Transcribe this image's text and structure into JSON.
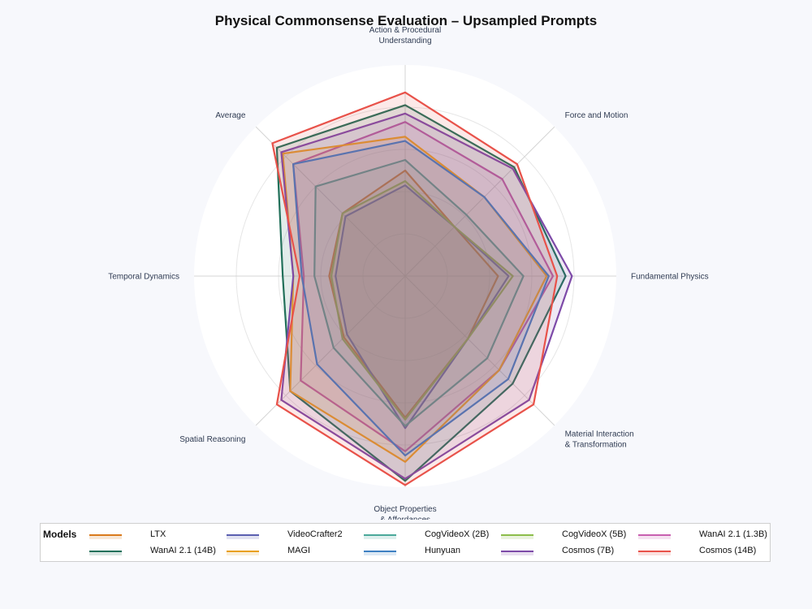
{
  "title": "Physical Commonsense Evaluation – Upsampled Prompts",
  "legend": {
    "title": "Models"
  },
  "chart_data": {
    "type": "radar",
    "title": "Physical Commonsense Evaluation – Upsampled Prompts",
    "axes": [
      [
        "Action & Procedural",
        "Understanding"
      ],
      [
        "Force and Motion"
      ],
      [
        "Fundamental Physics"
      ],
      [
        "Material Interaction",
        "& Transformation"
      ],
      [
        "Object Properties",
        "& Affordances"
      ],
      [
        "Spatial Reasoning"
      ],
      [
        "Temporal Dynamics"
      ],
      [
        "Average"
      ]
    ],
    "range": [
      0,
      1
    ],
    "grid": true,
    "legend_position": "bottom",
    "series": [
      {
        "name": "LTX",
        "color": "#d97a1c",
        "values": [
          0.5,
          0.33,
          0.44,
          0.42,
          0.67,
          0.41,
          0.36,
          0.42
        ]
      },
      {
        "name": "VideoCrafter2",
        "color": "#5a5fb0",
        "values": [
          0.43,
          0.33,
          0.49,
          0.42,
          0.72,
          0.39,
          0.33,
          0.4
        ]
      },
      {
        "name": "CogVideoX (2B)",
        "color": "#4aa89a",
        "values": [
          0.55,
          0.41,
          0.56,
          0.55,
          0.71,
          0.48,
          0.43,
          0.6
        ]
      },
      {
        "name": "CogVideoX (5B)",
        "color": "#8cbd4a",
        "values": [
          0.45,
          0.33,
          0.51,
          0.42,
          0.68,
          0.42,
          0.35,
          0.42
        ]
      },
      {
        "name": "WanAI 2.1 (1.3B)",
        "color": "#c860b0",
        "values": [
          0.73,
          0.65,
          0.7,
          0.63,
          0.83,
          0.7,
          0.48,
          0.75
        ]
      },
      {
        "name": "WanAI 2.1 (14B)",
        "color": "#22705a",
        "values": [
          0.81,
          0.73,
          0.76,
          0.72,
          0.97,
          0.77,
          0.58,
          0.86
        ]
      },
      {
        "name": "MAGI",
        "color": "#e8a020",
        "values": [
          0.66,
          0.53,
          0.67,
          0.63,
          0.88,
          0.77,
          0.53,
          0.82
        ]
      },
      {
        "name": "Hunyuan",
        "color": "#3d7fc2",
        "values": [
          0.64,
          0.53,
          0.68,
          0.69,
          0.85,
          0.59,
          0.49,
          0.75
        ]
      },
      {
        "name": "Cosmos (7B)",
        "color": "#7d4aa8",
        "values": [
          0.77,
          0.72,
          0.79,
          0.83,
          0.96,
          0.83,
          0.53,
          0.83
        ]
      },
      {
        "name": "Cosmos (14B)",
        "color": "#e8524a",
        "values": [
          0.87,
          0.75,
          0.72,
          0.86,
          0.99,
          0.86,
          0.5,
          0.89
        ]
      }
    ]
  }
}
